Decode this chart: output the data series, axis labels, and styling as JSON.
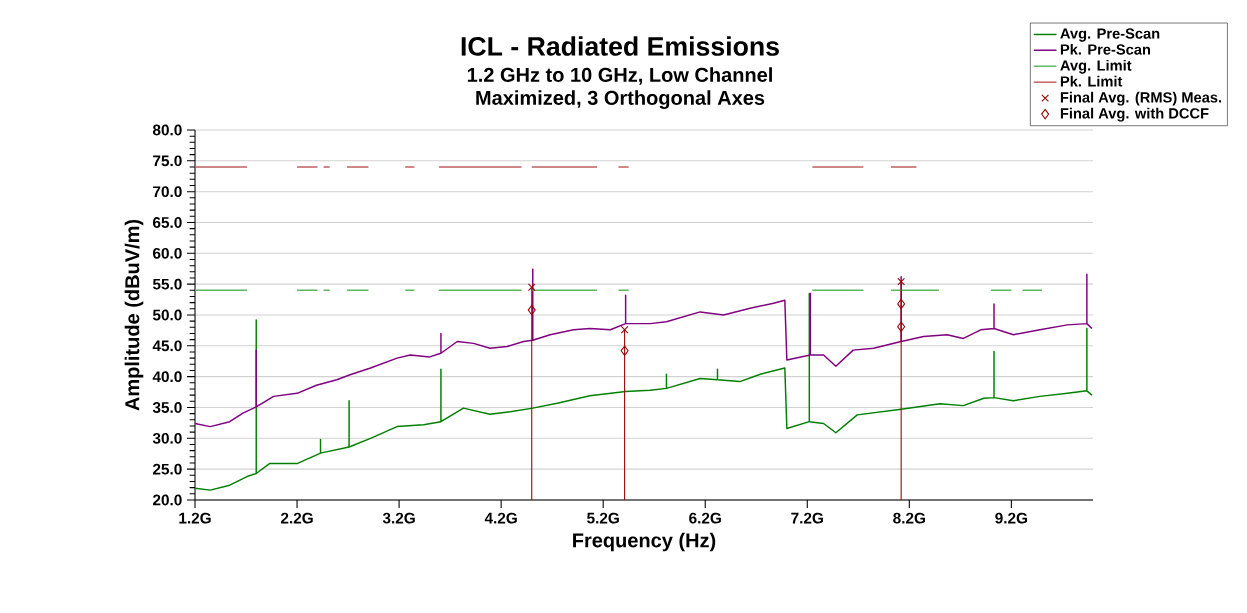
{
  "chart_data": {
    "type": "line",
    "title": "ICL - Radiated Emissions",
    "subtitle": "1.2 GHz to 10 GHz, Low Channel",
    "annotations": [
      "Maximized, 3 Orthogonal Axes"
    ],
    "xlabel": "Frequency (Hz)",
    "ylabel": "Amplitude (dBuV/m)",
    "xlim": [
      1.2,
      10
    ],
    "ylim": [
      20,
      80
    ],
    "xticks": [
      {
        "value": 1.2,
        "label": "1.2G"
      },
      {
        "value": 2.2,
        "label": "2.2G"
      },
      {
        "value": 3.2,
        "label": "3.2G"
      },
      {
        "value": 4.2,
        "label": "4.2G"
      },
      {
        "value": 5.2,
        "label": "5.2G"
      },
      {
        "value": 6.2,
        "label": "6.2G"
      },
      {
        "value": 7.2,
        "label": "7.2G"
      },
      {
        "value": 8.2,
        "label": "8.2G"
      },
      {
        "value": 9.2,
        "label": "9.2G"
      }
    ],
    "yticks": [
      {
        "value": 20,
        "label": "20.0"
      },
      {
        "value": 25,
        "label": "25.0"
      },
      {
        "value": 30,
        "label": "30.0"
      },
      {
        "value": 35,
        "label": "35.0"
      },
      {
        "value": 40,
        "label": "40.0"
      },
      {
        "value": 45,
        "label": "45.0"
      },
      {
        "value": 50,
        "label": "50.0"
      },
      {
        "value": 55,
        "label": "55.0"
      },
      {
        "value": 60,
        "label": "60.0"
      },
      {
        "value": 65,
        "label": "65.0"
      },
      {
        "value": 70,
        "label": "70.0"
      },
      {
        "value": 75,
        "label": "75.0"
      },
      {
        "value": 80,
        "label": "80.0"
      }
    ],
    "grid": "y",
    "legend": "top right",
    "line_style": "solid",
    "series": [
      {
        "name": "Avg. Pre-Scan",
        "color": "#008000",
        "marker": "none",
        "x": [
          1.2,
          1.35,
          1.54,
          1.71,
          1.8,
          1.8,
          1.8,
          1.93,
          2.2,
          2.43,
          2.43,
          2.43,
          2.71,
          2.71,
          2.71,
          2.92,
          3.18,
          3.44,
          3.61,
          3.61,
          3.61,
          3.83,
          4.09,
          4.29,
          4.51,
          4.75,
          5.07,
          5.42,
          5.66,
          5.82,
          5.82,
          5.82,
          6.15,
          6.32,
          6.32,
          6.32,
          6.54,
          6.74,
          6.98,
          7.0,
          7.22,
          7.22,
          7.22,
          7.36,
          7.48,
          7.69,
          8.12,
          8.5,
          8.73,
          8.93,
          9.03,
          9.03,
          9.03,
          9.22,
          9.48,
          9.75,
          9.94,
          9.94,
          9.94,
          9.99
        ],
        "values": [
          21.9,
          21.6,
          22.4,
          23.8,
          24.3,
          49.2,
          24.3,
          25.9,
          25.9,
          27.6,
          29.8,
          27.6,
          28.6,
          36.1,
          28.6,
          30.0,
          31.9,
          32.2,
          32.7,
          41.2,
          32.7,
          34.9,
          33.9,
          34.3,
          34.9,
          35.7,
          36.9,
          37.6,
          37.8,
          38.1,
          40.4,
          38.1,
          39.7,
          39.5,
          41.2,
          39.5,
          39.2,
          40.4,
          41.4,
          31.6,
          32.7,
          53.5,
          32.7,
          32.4,
          30.9,
          33.8,
          34.7,
          35.6,
          35.3,
          36.5,
          36.6,
          44.1,
          36.6,
          36.1,
          36.8,
          37.3,
          37.7,
          47.8,
          37.7,
          37.0
        ]
      },
      {
        "name": "Pk. Pre-Scan",
        "color": "#800080",
        "marker": "none",
        "x": [
          1.2,
          1.35,
          1.54,
          1.67,
          1.8,
          1.8,
          1.8,
          1.97,
          2.2,
          2.39,
          2.59,
          2.72,
          2.92,
          3.18,
          3.31,
          3.5,
          3.61,
          3.61,
          3.61,
          3.77,
          3.93,
          4.09,
          4.26,
          4.42,
          4.51,
          4.51,
          4.51,
          4.68,
          4.91,
          5.07,
          5.27,
          5.42,
          5.42,
          5.42,
          5.66,
          5.82,
          6.15,
          6.38,
          6.64,
          6.87,
          6.98,
          7.0,
          7.23,
          7.23,
          7.23,
          7.36,
          7.48,
          7.65,
          7.85,
          8.12,
          8.12,
          8.12,
          8.34,
          8.57,
          8.73,
          8.9,
          9.03,
          9.03,
          9.03,
          9.22,
          9.48,
          9.75,
          9.94,
          9.94,
          9.94,
          9.99
        ],
        "values": [
          32.4,
          31.9,
          32.7,
          34.1,
          35.1,
          44.3,
          35.1,
          36.8,
          37.3,
          38.6,
          39.5,
          40.3,
          41.4,
          43.0,
          43.5,
          43.2,
          43.8,
          47.0,
          43.8,
          45.7,
          45.4,
          44.6,
          44.9,
          45.7,
          45.9,
          57.4,
          45.9,
          46.8,
          47.6,
          47.8,
          47.6,
          48.6,
          53.2,
          48.6,
          48.6,
          48.9,
          50.5,
          50.0,
          51.1,
          51.9,
          52.4,
          42.7,
          43.5,
          53.5,
          43.5,
          43.5,
          41.7,
          44.3,
          44.6,
          45.7,
          56.2,
          45.7,
          46.5,
          46.8,
          46.2,
          47.6,
          47.8,
          51.8,
          47.8,
          46.8,
          47.6,
          48.4,
          48.6,
          56.6,
          48.6,
          47.8
        ]
      },
      {
        "name": "Avg. Limit",
        "color": "#5cb85c",
        "marker": "none",
        "x": [
          1.2,
          1.71,
          1.9,
          2.2,
          2.4,
          2.43,
          2.46,
          2.52,
          2.59,
          2.69,
          2.9,
          3.1,
          3.26,
          3.35,
          3.47,
          3.59,
          4.4,
          4.45,
          4.5,
          5.14,
          5.25,
          5.35,
          5.45,
          6.3,
          7.25,
          7.75,
          7.9,
          8.02,
          8.49,
          8.7,
          9.0,
          9.2,
          9.25,
          9.31,
          9.5
        ],
        "values": [
          54,
          54,
          null,
          54,
          54,
          null,
          54,
          54,
          null,
          54,
          54,
          null,
          54,
          54,
          null,
          54,
          54,
          null,
          54,
          54,
          null,
          54,
          54,
          null,
          54,
          54,
          null,
          54,
          54,
          null,
          54,
          54,
          null,
          54,
          54
        ]
      },
      {
        "name": "Pk. Limit",
        "color": "#c06060",
        "marker": "none",
        "x": [
          1.2,
          1.71,
          1.9,
          2.2,
          2.4,
          2.43,
          2.46,
          2.52,
          2.59,
          2.69,
          2.9,
          3.1,
          3.26,
          3.35,
          3.47,
          3.59,
          4.4,
          4.45,
          4.5,
          5.14,
          5.25,
          5.35,
          5.45,
          6.3,
          7.25,
          7.75,
          7.9,
          8.02,
          8.27
        ],
        "values": [
          74,
          74,
          null,
          74,
          74,
          null,
          74,
          74,
          null,
          74,
          74,
          null,
          74,
          74,
          null,
          74,
          74,
          null,
          74,
          74,
          null,
          74,
          74,
          null,
          74,
          74,
          null,
          74,
          74
        ]
      },
      {
        "name": "Final Avg. (RMS) Meas.",
        "color": "#990000",
        "type": "lollipop",
        "marker": "cross",
        "x": [
          4.5,
          5.41,
          8.12
        ],
        "values": [
          54.5,
          47.6,
          55.4
        ]
      },
      {
        "name": "Final Avg. with DCCF",
        "color": "#990000",
        "type": "scatter",
        "marker": "diamond",
        "x": [
          4.5,
          5.41,
          8.12,
          8.12
        ],
        "values": [
          50.8,
          44.2,
          51.8,
          48.1
        ]
      }
    ]
  }
}
